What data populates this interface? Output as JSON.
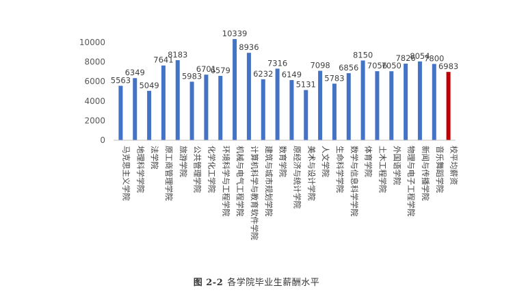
{
  "chart_data": {
    "type": "bar",
    "title": "",
    "xlabel": "",
    "ylabel": "",
    "ylim": [
      0,
      10000
    ],
    "yticks": [
      0,
      2000,
      4000,
      6000,
      8000,
      10000
    ],
    "grid": false,
    "legend": "none",
    "colors": {
      "default": "#4472C4",
      "highlight": "#C00000"
    },
    "highlight_category": "校平均薪资",
    "categories": [
      "马克思主义学院",
      "地理科学学院",
      "法学院",
      "原工商管理学院",
      "旅游学院",
      "公共管理学院",
      "化学化工学院",
      "环境科学与工程学院",
      "机械与电气工程学院",
      "计算机科学与教育软件学院",
      "建筑与城市规划学院",
      "数育学院",
      "原经济与统计学院",
      "美术与设计学院",
      "人文学院",
      "生命科学学院",
      "数学与信息科学学院",
      "体育学院",
      "土木工程学院",
      "外国语学院",
      "物理与电子工程学院",
      "新闻与传播学院",
      "音乐舞蹈学院",
      "校平均薪资"
    ],
    "values": [
      5563,
      6349,
      5049,
      7641,
      8183,
      5983,
      6701,
      6579,
      10339,
      8936,
      6232,
      7316,
      6149,
      5131,
      7098,
      5783,
      6856,
      8150,
      7056,
      7050,
      7826,
      8054,
      7800,
      6983
    ]
  },
  "caption": {
    "figure_no": "图 2-2",
    "text": "各学院毕业生薪酬水平"
  }
}
